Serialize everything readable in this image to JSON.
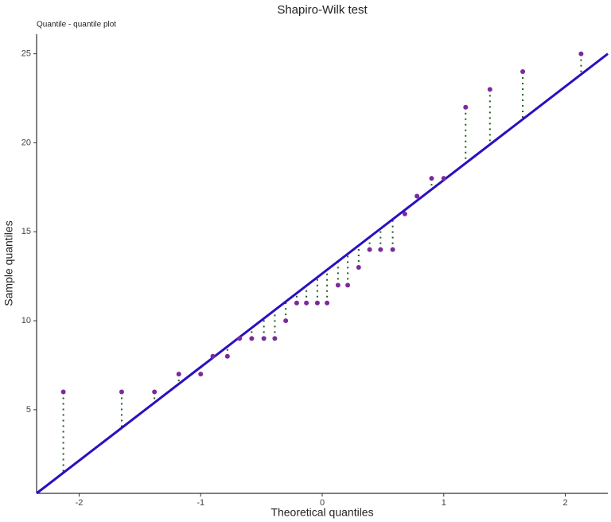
{
  "chart_data": {
    "type": "qq",
    "title": "Shapiro-Wilk test",
    "subtitle": "Quantile - quantile plot",
    "xlabel": "Theoretical quantiles",
    "ylabel": "Sample quantiles",
    "x": [
      -2.13,
      -1.65,
      -1.38,
      -1.18,
      -1.0,
      -0.9,
      -0.78,
      -0.68,
      -0.58,
      -0.48,
      -0.39,
      -0.3,
      -0.21,
      -0.13,
      -0.04,
      0.04,
      0.13,
      0.21,
      0.3,
      0.39,
      0.48,
      0.58,
      0.68,
      0.78,
      0.9,
      1.0,
      1.18,
      1.38,
      1.65,
      2.13
    ],
    "y": [
      6,
      6,
      6,
      7,
      7,
      8,
      8,
      9,
      9,
      9,
      9,
      10,
      11,
      11,
      11,
      11,
      12,
      12,
      13,
      14,
      14,
      14,
      16,
      17,
      18,
      18,
      22,
      23,
      24,
      25
    ],
    "color": "#7b2a9c",
    "reference_line": {
      "x": [
        -2.35,
        2.35
      ],
      "y": [
        0.3,
        25.0
      ],
      "color": "#2a10c0"
    },
    "residual_color": "#1a5e1a",
    "xlim": [
      -2.35,
      2.35
    ],
    "ylim": [
      0.3,
      26.1
    ],
    "xticks": [
      -2,
      -1,
      0,
      1,
      2
    ],
    "yticks": [
      5,
      10,
      15,
      20,
      25
    ]
  }
}
